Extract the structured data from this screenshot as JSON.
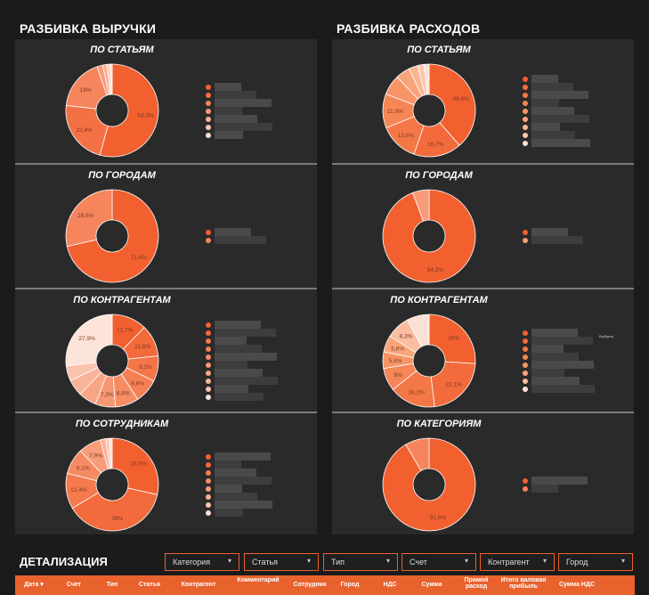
{
  "revenue": {
    "title": "РАЗБИВКА ВЫРУЧКИ",
    "cards": [
      {
        "title": "ПО СТАТЬЯМ",
        "chart_data": {
          "type": "pie",
          "values": [
            54.3,
            22.4,
            18,
            2,
            1.5,
            1,
            0.8
          ],
          "labels": [
            "54,3%",
            "22,4%",
            "18%",
            "",
            "",
            "",
            ""
          ],
          "colors": [
            "#f26030",
            "#f47145",
            "#f6855d",
            "#f89a78",
            "#faaf95",
            "#fcc6b3",
            "#fde0d4"
          ]
        }
      },
      {
        "title": "ПО ГОРОДАМ",
        "chart_data": {
          "type": "pie",
          "values": [
            71.4,
            28.6
          ],
          "labels": [
            "71,4%",
            "28,6%"
          ],
          "colors": [
            "#f26030",
            "#f6855d"
          ]
        }
      },
      {
        "title": "ПО КОНТРАГЕНТАМ",
        "chart_data": {
          "type": "pie",
          "values": [
            12.7,
            11.6,
            9.2,
            8.8,
            8.6,
            7.3,
            6.5,
            6.0,
            5.5,
            27.9
          ],
          "labels": [
            "12,7%",
            "11,6%",
            "9,2%",
            "8,8%",
            "8,6%",
            "7,3%",
            "",
            "",
            "",
            "27,9%"
          ],
          "colors": [
            "#f26030",
            "#f36a3b",
            "#f47547",
            "#f58055",
            "#f68c64",
            "#f79874",
            "#f8a586",
            "#f9b399",
            "#fbc2ad",
            "#fde4da"
          ]
        }
      },
      {
        "title": "ПО СОТРУДНИКАМ",
        "chart_data": {
          "type": "pie",
          "values": [
            28.5,
            38,
            12.4,
            9.1,
            7.9,
            1.8,
            1.3,
            1.0
          ],
          "labels": [
            "28,5%",
            "38%",
            "12,4%",
            "9,1%",
            "7,9%",
            "",
            "",
            ""
          ],
          "colors": [
            "#f26030",
            "#f36b3c",
            "#f57a4e",
            "#f68b62",
            "#f89d79",
            "#faaf94",
            "#fcc5b1",
            "#fde0d4"
          ]
        }
      }
    ]
  },
  "expenses": {
    "title": "РАЗБИВКА РАСХОДОВ",
    "cards": [
      {
        "title": "ПО СТАТЬЯМ",
        "chart_data": {
          "type": "pie",
          "values": [
            38.6,
            16.7,
            13.6,
            11.9,
            7.0,
            5.0,
            3.2,
            2.2,
            1.8
          ],
          "labels": [
            "38,6%",
            "16,7%",
            "13,6%",
            "11,9%",
            "",
            "",
            "",
            "",
            ""
          ],
          "colors": [
            "#f26030",
            "#f36b3c",
            "#f47847",
            "#f68656",
            "#f79567",
            "#f9a57b",
            "#fab692",
            "#fcc8ac",
            "#fde0d4"
          ]
        }
      },
      {
        "title": "ПО ГОРОДАМ",
        "chart_data": {
          "type": "pie",
          "values": [
            94.2,
            5.8
          ],
          "labels": [
            "94,2%",
            ""
          ],
          "colors": [
            "#f26030",
            "#f89a78"
          ]
        }
      },
      {
        "title": "ПО КОНТРАГЕНТАМ",
        "chart_data": {
          "type": "pie",
          "values": [
            26,
            22.1,
            16.2,
            8,
            5.8,
            5.8,
            8.3,
            7.8
          ],
          "labels": [
            "26%",
            "22,1%",
            "16,2%",
            "8%",
            "5,8%",
            "5,8%",
            "8,3%",
            ""
          ],
          "colors": [
            "#f26030",
            "#f36b3c",
            "#f47847",
            "#f68656",
            "#f79567",
            "#f9a57b",
            "#fbbda0",
            "#fde0d4"
          ]
        },
        "tag": "Выбрать"
      },
      {
        "title": "ПО КАТЕГОРИЯМ",
        "chart_data": {
          "type": "pie",
          "values": [
            91.6,
            8.4
          ],
          "labels": [
            "91,6%",
            ""
          ],
          "colors": [
            "#f26030",
            "#f6855d"
          ]
        }
      }
    ]
  },
  "details": {
    "title": "ДЕТАЛИЗАЦИЯ",
    "filters": [
      "Категория",
      "Статья",
      "Тип",
      "Счет",
      "Контрагент",
      "Город"
    ],
    "columns": [
      "Дата ▾",
      "Счет",
      "Тип",
      "Статья",
      "Контрагент",
      "Комментарий",
      "Сотрудник",
      "Город",
      "НДС",
      "Сумма",
      "Прямой расход",
      "Итого валовая прибыль",
      "Сумма НДС"
    ]
  }
}
